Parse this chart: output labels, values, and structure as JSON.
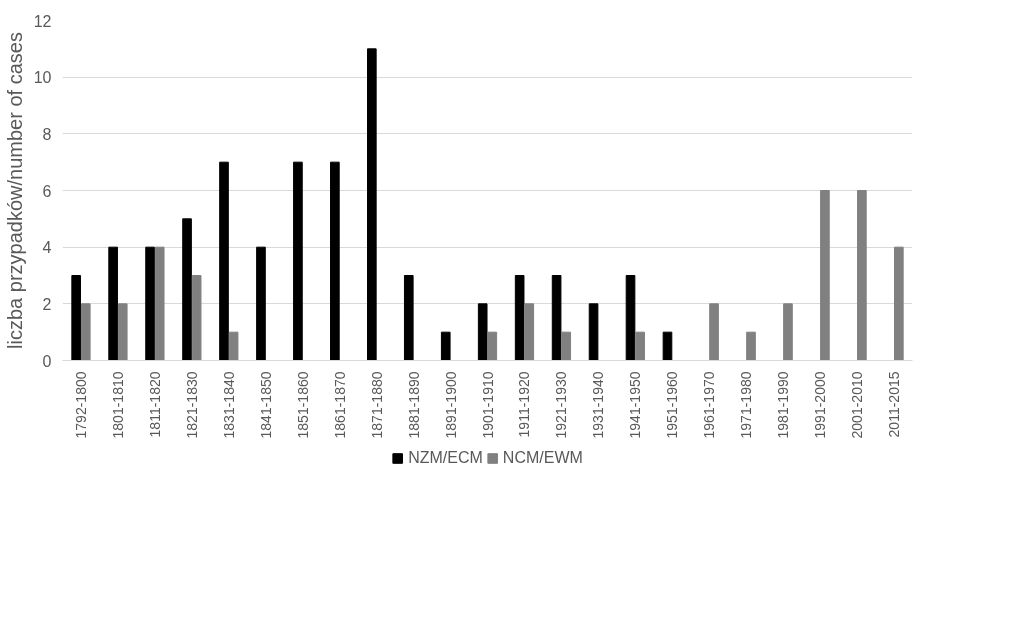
{
  "chart_data": {
    "type": "bar",
    "ylabel": "liczba przypadków/number of cases",
    "categories": [
      "1792-1800",
      "1801-1810",
      "1811-1820",
      "1821-1830",
      "1831-1840",
      "1841-1850",
      "1851-1860",
      "1861-1870",
      "1871-1880",
      "1881-1890",
      "1891-1900",
      "1901-1910",
      "1911-1920",
      "1921-1930",
      "1931-1940",
      "1941-1950",
      "1951-1960",
      "1961-1970",
      "1971-1980",
      "1981-1990",
      "1991-2000",
      "2001-2010",
      "2011-2015"
    ],
    "series": [
      {
        "name": "NZM/ECM",
        "color": "#000000",
        "values": [
          3,
          4,
          4,
          5,
          7,
          4,
          7,
          7,
          11,
          3,
          1,
          2,
          3,
          3,
          2,
          3,
          1,
          0,
          0,
          0,
          0,
          0,
          0
        ]
      },
      {
        "name": "NCM/EWM",
        "color": "#808080",
        "values": [
          2,
          2,
          4,
          3,
          1,
          0,
          0,
          0,
          0,
          0,
          0,
          1,
          2,
          1,
          0,
          1,
          0,
          2,
          1,
          2,
          6,
          6,
          4
        ]
      }
    ],
    "ylim": [
      0,
      12
    ],
    "yticks": [
      0,
      2,
      4,
      6,
      8,
      10,
      12
    ],
    "grid": "y",
    "legend": "bottom"
  }
}
